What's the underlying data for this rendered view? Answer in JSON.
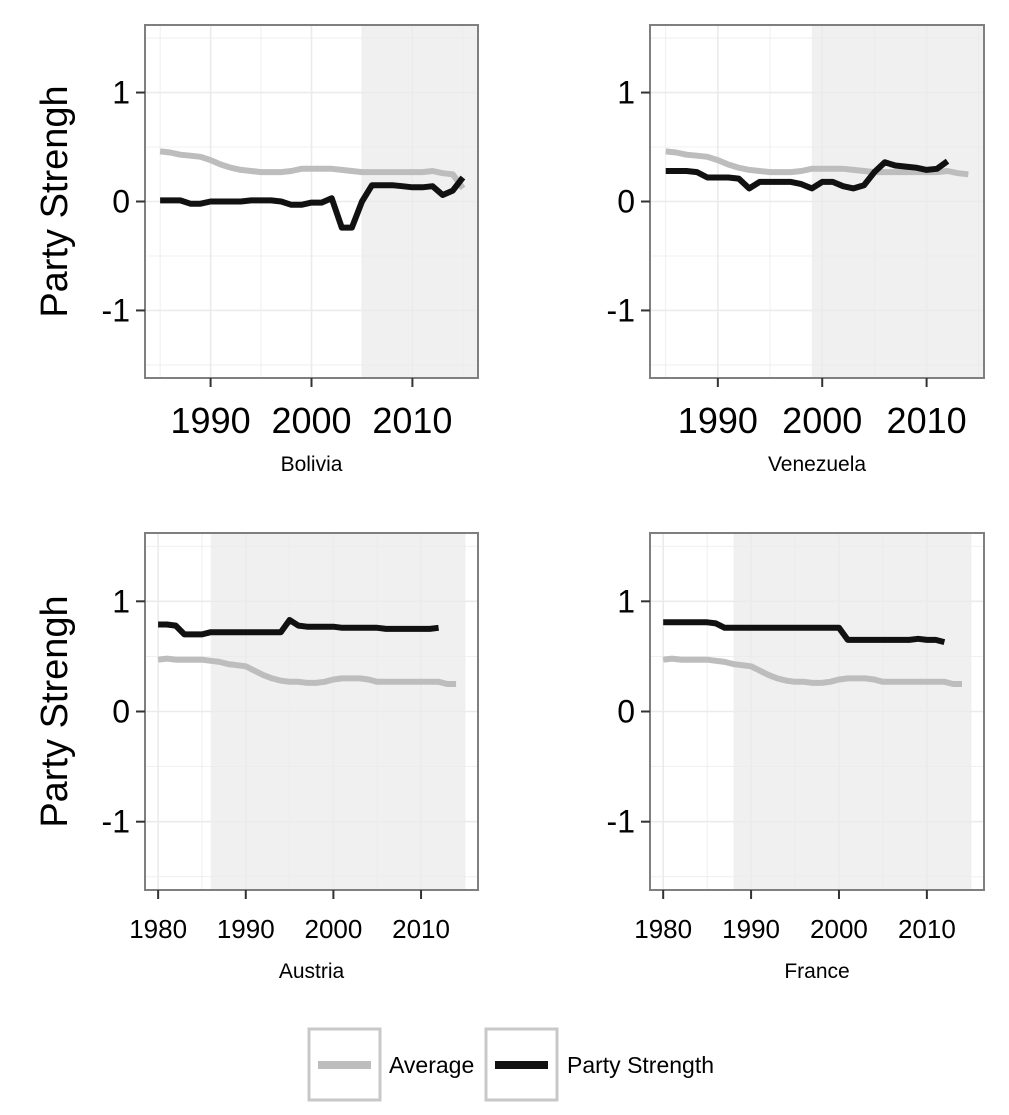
{
  "chart_data": [
    {
      "type": "line",
      "title": "Bolivia",
      "ylabel": "Party Strengh",
      "xlim": [
        1983.5,
        2016.5
      ],
      "ylim": [
        -1.62,
        1.62
      ],
      "x_ticks": [
        1990,
        2000,
        2010
      ],
      "y_ticks": [
        -1,
        0,
        1
      ],
      "y_tick_labels": [
        "-1",
        "0",
        "1"
      ],
      "shade": [
        2005,
        2016.5
      ],
      "series": [
        {
          "name": "Average",
          "color": "#bdbdbd",
          "x": [
            1985,
            1986,
            1987,
            1988,
            1989,
            1990,
            1991,
            1992,
            1993,
            1994,
            1995,
            1996,
            1997,
            1998,
            1999,
            2000,
            2001,
            2002,
            2003,
            2004,
            2005,
            2006,
            2007,
            2008,
            2009,
            2010,
            2011,
            2012,
            2013,
            2014,
            2015
          ],
          "y": [
            0.46,
            0.45,
            0.43,
            0.42,
            0.41,
            0.38,
            0.34,
            0.31,
            0.29,
            0.28,
            0.27,
            0.27,
            0.27,
            0.28,
            0.3,
            0.3,
            0.3,
            0.3,
            0.29,
            0.28,
            0.27,
            0.27,
            0.27,
            0.27,
            0.27,
            0.27,
            0.27,
            0.28,
            0.26,
            0.25,
            0.12
          ]
        },
        {
          "name": "Party Strength",
          "color": "#111111",
          "x": [
            1985,
            1986,
            1987,
            1988,
            1989,
            1990,
            1991,
            1992,
            1993,
            1994,
            1995,
            1996,
            1997,
            1998,
            1999,
            2000,
            2001,
            2002,
            2003,
            2004,
            2005,
            2006,
            2007,
            2008,
            2009,
            2010,
            2011,
            2012,
            2013,
            2014,
            2015
          ],
          "y": [
            0.01,
            0.01,
            0.01,
            -0.02,
            -0.02,
            0.0,
            0.0,
            0.0,
            0.0,
            0.01,
            0.01,
            0.01,
            0.0,
            -0.03,
            -0.03,
            -0.01,
            -0.01,
            0.03,
            -0.24,
            -0.24,
            0.0,
            0.15,
            0.15,
            0.15,
            0.14,
            0.13,
            0.13,
            0.14,
            0.06,
            0.1,
            0.22
          ]
        }
      ]
    },
    {
      "type": "line",
      "title": "Venezuela",
      "ylabel": "",
      "xlim": [
        1983.5,
        2015.5
      ],
      "ylim": [
        -1.62,
        1.62
      ],
      "x_ticks": [
        1990,
        2000,
        2010
      ],
      "y_ticks": [
        -1,
        0,
        1
      ],
      "y_tick_labels": [
        "-1",
        "0",
        "1"
      ],
      "shade": [
        1999,
        2015.5
      ],
      "series": [
        {
          "name": "Average",
          "color": "#bdbdbd",
          "x": [
            1985,
            1986,
            1987,
            1988,
            1989,
            1990,
            1991,
            1992,
            1993,
            1994,
            1995,
            1996,
            1997,
            1998,
            1999,
            2000,
            2001,
            2002,
            2003,
            2004,
            2005,
            2006,
            2007,
            2008,
            2009,
            2010,
            2011,
            2012,
            2013,
            2014
          ],
          "y": [
            0.46,
            0.45,
            0.43,
            0.42,
            0.41,
            0.38,
            0.34,
            0.31,
            0.29,
            0.28,
            0.27,
            0.27,
            0.27,
            0.28,
            0.3,
            0.3,
            0.3,
            0.3,
            0.29,
            0.28,
            0.27,
            0.27,
            0.27,
            0.27,
            0.27,
            0.27,
            0.27,
            0.28,
            0.26,
            0.25
          ]
        },
        {
          "name": "Party Strength",
          "color": "#111111",
          "x": [
            1985,
            1986,
            1987,
            1988,
            1989,
            1990,
            1991,
            1992,
            1993,
            1994,
            1995,
            1996,
            1997,
            1998,
            1999,
            2000,
            2001,
            2002,
            2003,
            2004,
            2005,
            2006,
            2007,
            2008,
            2009,
            2010,
            2011,
            2012
          ],
          "y": [
            0.28,
            0.28,
            0.28,
            0.27,
            0.22,
            0.22,
            0.22,
            0.21,
            0.12,
            0.18,
            0.18,
            0.18,
            0.18,
            0.16,
            0.12,
            0.18,
            0.18,
            0.14,
            0.12,
            0.15,
            0.27,
            0.36,
            0.33,
            0.32,
            0.31,
            0.29,
            0.3,
            0.37
          ]
        }
      ]
    },
    {
      "type": "line",
      "title": "Austria",
      "ylabel": "Party Strengh",
      "xlim": [
        1978.5,
        2016.5
      ],
      "ylim": [
        -1.62,
        1.62
      ],
      "x_ticks": [
        1980,
        1990,
        2000,
        2010
      ],
      "y_ticks": [
        -1,
        0,
        1
      ],
      "y_tick_labels": [
        "-1",
        "0",
        "1"
      ],
      "shade": [
        1986,
        2015
      ],
      "series": [
        {
          "name": "Average",
          "color": "#bdbdbd",
          "x": [
            1980,
            1981,
            1982,
            1983,
            1984,
            1985,
            1986,
            1987,
            1988,
            1989,
            1990,
            1991,
            1992,
            1993,
            1994,
            1995,
            1996,
            1997,
            1998,
            1999,
            2000,
            2001,
            2002,
            2003,
            2004,
            2005,
            2006,
            2007,
            2008,
            2009,
            2010,
            2011,
            2012,
            2013,
            2014
          ],
          "y": [
            0.47,
            0.48,
            0.47,
            0.47,
            0.47,
            0.47,
            0.46,
            0.45,
            0.43,
            0.42,
            0.41,
            0.37,
            0.33,
            0.3,
            0.28,
            0.27,
            0.27,
            0.26,
            0.26,
            0.27,
            0.29,
            0.3,
            0.3,
            0.3,
            0.29,
            0.27,
            0.27,
            0.27,
            0.27,
            0.27,
            0.27,
            0.27,
            0.27,
            0.25,
            0.25
          ]
        },
        {
          "name": "Party Strength",
          "color": "#111111",
          "x": [
            1980,
            1981,
            1982,
            1983,
            1984,
            1985,
            1986,
            1987,
            1988,
            1989,
            1990,
            1991,
            1992,
            1993,
            1994,
            1995,
            1996,
            1997,
            1998,
            1999,
            2000,
            2001,
            2002,
            2003,
            2004,
            2005,
            2006,
            2007,
            2008,
            2009,
            2010,
            2011,
            2012
          ],
          "y": [
            0.79,
            0.79,
            0.78,
            0.7,
            0.7,
            0.7,
            0.72,
            0.72,
            0.72,
            0.72,
            0.72,
            0.72,
            0.72,
            0.72,
            0.72,
            0.83,
            0.78,
            0.77,
            0.77,
            0.77,
            0.77,
            0.76,
            0.76,
            0.76,
            0.76,
            0.76,
            0.75,
            0.75,
            0.75,
            0.75,
            0.75,
            0.75,
            0.76
          ]
        }
      ]
    },
    {
      "type": "line",
      "title": "France",
      "ylabel": "",
      "xlim": [
        1978.5,
        2016.5
      ],
      "ylim": [
        -1.62,
        1.62
      ],
      "x_ticks": [
        1980,
        1990,
        2000,
        2010
      ],
      "y_ticks": [
        -1,
        0,
        1
      ],
      "y_tick_labels": [
        "-1",
        "0",
        "1"
      ],
      "shade": [
        1988,
        2015
      ],
      "series": [
        {
          "name": "Average",
          "color": "#bdbdbd",
          "x": [
            1980,
            1981,
            1982,
            1983,
            1984,
            1985,
            1986,
            1987,
            1988,
            1989,
            1990,
            1991,
            1992,
            1993,
            1994,
            1995,
            1996,
            1997,
            1998,
            1999,
            2000,
            2001,
            2002,
            2003,
            2004,
            2005,
            2006,
            2007,
            2008,
            2009,
            2010,
            2011,
            2012,
            2013,
            2014
          ],
          "y": [
            0.47,
            0.48,
            0.47,
            0.47,
            0.47,
            0.47,
            0.46,
            0.45,
            0.43,
            0.42,
            0.41,
            0.37,
            0.33,
            0.3,
            0.28,
            0.27,
            0.27,
            0.26,
            0.26,
            0.27,
            0.29,
            0.3,
            0.3,
            0.3,
            0.29,
            0.27,
            0.27,
            0.27,
            0.27,
            0.27,
            0.27,
            0.27,
            0.27,
            0.25,
            0.25
          ]
        },
        {
          "name": "Party Strength",
          "color": "#111111",
          "x": [
            1980,
            1981,
            1982,
            1983,
            1984,
            1985,
            1986,
            1987,
            1988,
            1989,
            1990,
            1991,
            1992,
            1993,
            1994,
            1995,
            1996,
            1997,
            1998,
            1999,
            2000,
            2001,
            2002,
            2003,
            2004,
            2005,
            2006,
            2007,
            2008,
            2009,
            2010,
            2011,
            2012
          ],
          "y": [
            0.81,
            0.81,
            0.81,
            0.81,
            0.81,
            0.81,
            0.8,
            0.76,
            0.76,
            0.76,
            0.76,
            0.76,
            0.76,
            0.76,
            0.76,
            0.76,
            0.76,
            0.76,
            0.76,
            0.76,
            0.76,
            0.65,
            0.65,
            0.65,
            0.65,
            0.65,
            0.65,
            0.65,
            0.65,
            0.66,
            0.65,
            0.65,
            0.63
          ]
        }
      ]
    }
  ],
  "legend": {
    "position": "bottom",
    "items": [
      {
        "label": "Average",
        "color": "#bdbdbd"
      },
      {
        "label": "Party Strength",
        "color": "#111111"
      }
    ]
  },
  "colors": {
    "shade": "#f0f0f0",
    "grid": "#ebebeb",
    "axis": "#7f7f7f"
  }
}
